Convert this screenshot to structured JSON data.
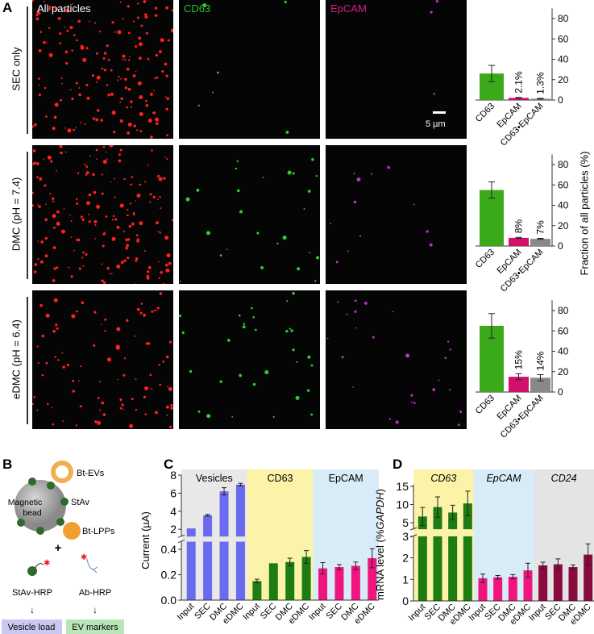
{
  "panel_labels": {
    "a": "A",
    "b": "B",
    "c": "C",
    "d": "D"
  },
  "panel_a": {
    "channels": [
      {
        "label": "All particles",
        "color": "#ffffff",
        "dot": "#ff2020"
      },
      {
        "label": "CD63",
        "color": "#2fbf2f",
        "dot": "#30d030"
      },
      {
        "label": "EpCAM",
        "color": "#d0208a",
        "dot": "#c030d0"
      }
    ],
    "rows": [
      "SEC only",
      "DMC (pH = 7.4)",
      "eDMC (pH = 6.4)"
    ],
    "scale_bar": "5 µm",
    "ylabel": "Fraction of all particles (%)"
  },
  "panel_b": {
    "bt_evs": "Bt-EVs",
    "bead": "Magnetic bead",
    "bead_l1": "Magnetic",
    "bead_l2": "bead",
    "stav": "StAv",
    "bt_lpps": "Bt-LPPs",
    "plus": "+",
    "stav_hrp": "StAv-HRP",
    "ab_hrp": "Ab-HRP",
    "arrow": "↓",
    "vesicle_load": "Vesicle load",
    "ev_markers": "EV markers"
  },
  "chart_data": [
    {
      "type": "bar",
      "title": "SEC only",
      "categories": [
        "CD63",
        "EpCAM",
        "CD63•EpCAM"
      ],
      "values": [
        26,
        2.1,
        1.3
      ],
      "errors": [
        8,
        0.5,
        0.4
      ],
      "labels": [
        "",
        "2.1%",
        "1.3%"
      ],
      "colors": [
        "#3aaa1a",
        "#d0106a",
        "#888888"
      ],
      "ylim": [
        0,
        90
      ],
      "yticks": [
        0,
        20,
        40,
        60,
        80
      ],
      "ylabel": "Fraction of all particles (%)"
    },
    {
      "type": "bar",
      "title": "DMC (pH = 7.4)",
      "categories": [
        "CD63",
        "EpCAM",
        "CD63•EpCAM"
      ],
      "values": [
        55,
        8,
        7
      ],
      "errors": [
        8,
        0.5,
        0.5
      ],
      "labels": [
        "",
        "8%",
        "7%"
      ],
      "colors": [
        "#3aaa1a",
        "#d0106a",
        "#888888"
      ],
      "ylim": [
        0,
        90
      ],
      "yticks": [
        0,
        20,
        40,
        60,
        80
      ],
      "ylabel": "Fraction of all particles (%)"
    },
    {
      "type": "bar",
      "title": "eDMC (pH = 6.4)",
      "categories": [
        "CD63",
        "EpCAM",
        "CD63•EpCAM"
      ],
      "values": [
        65,
        15,
        14
      ],
      "errors": [
        12,
        3,
        3
      ],
      "labels": [
        "",
        "15%",
        "14%"
      ],
      "colors": [
        "#3aaa1a",
        "#d0106a",
        "#888888"
      ],
      "ylim": [
        0,
        90
      ],
      "yticks": [
        0,
        20,
        40,
        60,
        80
      ],
      "ylabel": "Fraction of all particles (%)"
    },
    {
      "type": "bar",
      "panel": "C",
      "ylabel": "Current (µA)",
      "categories": [
        "Input",
        "SEC",
        "DMC",
        "eDMC"
      ],
      "y_segments": [
        [
          0,
          0.46
        ],
        [
          1.2,
          8
        ]
      ],
      "yticks_lower": [
        "0.0",
        "0.2",
        "0.4"
      ],
      "yticks_upper": [
        "2",
        "4",
        "6",
        "8"
      ],
      "groups": [
        {
          "name": "Vesicles",
          "band": "#e8e8e8",
          "color": "#6a6aee",
          "values": [
            2.1,
            3.55,
            6.2,
            6.95
          ],
          "errors": [
            0,
            0.1,
            0.4,
            0.15
          ]
        },
        {
          "name": "CD63",
          "band": "#fbf3a8",
          "color": "#1e7d12",
          "values": [
            0.15,
            0.29,
            0.3,
            0.34
          ],
          "errors": [
            0.015,
            0,
            0.03,
            0.05
          ]
        },
        {
          "name": "EpCAM",
          "band": "#d8ecf8",
          "color": "#f0157e",
          "values": [
            0.25,
            0.26,
            0.27,
            0.33
          ],
          "errors": [
            0.045,
            0.02,
            0.03,
            0.075
          ]
        }
      ]
    },
    {
      "type": "bar",
      "panel": "D",
      "ylabel": "mRNA level (%GAPDH)",
      "ylabel_pre": "mRNA level (%",
      "ylabel_it": "GAPDH",
      "ylabel_post": ")",
      "categories": [
        "Input",
        "SEC",
        "DMC",
        "eDMC"
      ],
      "y_segments": [
        [
          0,
          3
        ],
        [
          3.2,
          15.5
        ]
      ],
      "yticks_lower": [
        "0",
        "1",
        "2",
        "3"
      ],
      "yticks_upper": [
        "5",
        "10",
        "15"
      ],
      "groups": [
        {
          "name": "CD63",
          "band": "#fbf3a8",
          "color": "#1e7d12",
          "values": [
            6.7,
            9.3,
            7.8,
            10.3
          ],
          "errors": [
            2.5,
            2.8,
            2.0,
            3.4
          ]
        },
        {
          "name": "EpCAM",
          "band": "#d8ecf8",
          "color": "#f0157e",
          "values": [
            1.05,
            1.1,
            1.12,
            1.42
          ],
          "errors": [
            0.2,
            0.08,
            0.1,
            0.33
          ]
        },
        {
          "name": "CD24",
          "band": "#e4e4e4",
          "color": "#8a0a40",
          "values": [
            1.65,
            1.7,
            1.57,
            2.15
          ],
          "errors": [
            0.15,
            0.25,
            0.1,
            0.5
          ]
        }
      ]
    }
  ]
}
